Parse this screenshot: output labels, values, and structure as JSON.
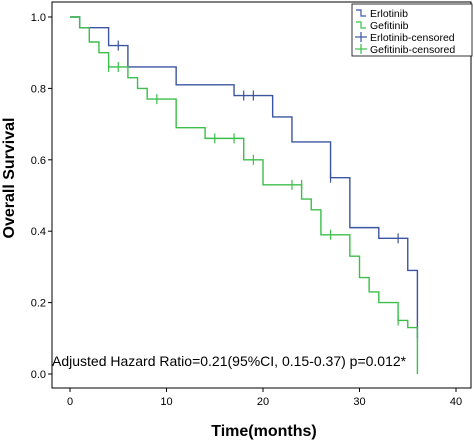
{
  "chart_data": {
    "type": "line",
    "xlabel": "Time(months)",
    "ylabel": "Overall Survival",
    "xlim": [
      0,
      40
    ],
    "ylim": [
      0,
      1.0
    ],
    "x_ticks": [
      0,
      10,
      20,
      30,
      40
    ],
    "y_ticks": [
      "0.0",
      "0.2",
      "0.4",
      "0.6",
      "0.8",
      "1.0"
    ],
    "grid": false,
    "legend_position": "top-right",
    "legend": [
      "Erlotinib",
      "Gefitinib",
      "Erlotinib-censored",
      "Gefitinib-censored"
    ],
    "annotation": "Adjusted Hazard Ratio=0.21(95%CI, 0.15-0.37) p=0.012*",
    "series": [
      {
        "name": "Erlotinib",
        "color": "#3b55a0",
        "steps": [
          [
            0,
            1.0
          ],
          [
            1,
            0.97
          ],
          [
            4,
            0.92
          ],
          [
            6,
            0.86
          ],
          [
            11,
            0.81
          ],
          [
            17,
            0.78
          ],
          [
            21,
            0.72
          ],
          [
            23,
            0.65
          ],
          [
            27,
            0.55
          ],
          [
            29,
            0.41
          ],
          [
            32,
            0.38
          ],
          [
            35,
            0.29
          ],
          [
            36,
            0.1
          ],
          [
            36,
            0.1
          ]
        ],
        "censored": [
          [
            5,
            0.92
          ],
          [
            18,
            0.78
          ],
          [
            19,
            0.78
          ],
          [
            27,
            0.55
          ],
          [
            34,
            0.38
          ]
        ]
      },
      {
        "name": "Gefitinib",
        "color": "#3bbf4a",
        "steps": [
          [
            0,
            1.0
          ],
          [
            1,
            0.97
          ],
          [
            2,
            0.93
          ],
          [
            3,
            0.9
          ],
          [
            4,
            0.86
          ],
          [
            6,
            0.83
          ],
          [
            7,
            0.8
          ],
          [
            8,
            0.77
          ],
          [
            11,
            0.69
          ],
          [
            14,
            0.66
          ],
          [
            18,
            0.6
          ],
          [
            20,
            0.53
          ],
          [
            24,
            0.49
          ],
          [
            25,
            0.46
          ],
          [
            26,
            0.39
          ],
          [
            29,
            0.33
          ],
          [
            30,
            0.27
          ],
          [
            31,
            0.23
          ],
          [
            32,
            0.2
          ],
          [
            34,
            0.15
          ],
          [
            35,
            0.13
          ],
          [
            36,
            0.1
          ],
          [
            36,
            0.0
          ],
          [
            36,
            0.0
          ]
        ],
        "censored": [
          [
            4,
            0.86
          ],
          [
            5,
            0.86
          ],
          [
            9,
            0.77
          ],
          [
            15,
            0.66
          ],
          [
            17,
            0.66
          ],
          [
            19,
            0.6
          ],
          [
            23,
            0.53
          ],
          [
            24,
            0.53
          ],
          [
            27,
            0.39
          ],
          [
            34,
            0.15
          ]
        ]
      }
    ]
  }
}
